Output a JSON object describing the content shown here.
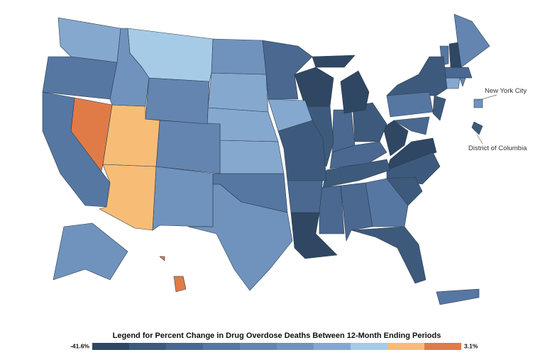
{
  "map": {
    "annotations": [
      "New York City",
      "District of Columbia"
    ],
    "legend": {
      "title": "Legend for Percent Change in Drug Overdose Deaths Between 12-Month Ending Periods",
      "min": {
        "value": -41.6,
        "label": "-41.6%"
      },
      "max": {
        "value": 3.1,
        "label": "3.1%"
      },
      "colors": [
        "#2f4762",
        "#3d5a7c",
        "#4a6890",
        "#5677a2",
        "#6385b0",
        "#7093bd",
        "#85a8cf",
        "#a5cbe7",
        "#f7bd76",
        "#e07b48"
      ]
    },
    "regions": [
      {
        "color": "#85a8cf"
      },
      {
        "color": "#5677a2"
      },
      {
        "color": "#5677a2"
      },
      {
        "color": "#e07b48"
      },
      {
        "color": "#7093bd"
      },
      {
        "color": "#a5cbe7"
      },
      {
        "color": "#6385b0"
      },
      {
        "color": "#f7bd76"
      },
      {
        "color": "#f7bd76"
      },
      {
        "color": "#6385b0"
      },
      {
        "color": "#7093bd"
      },
      {
        "color": "#7093bd"
      },
      {
        "color": "#85a8cf"
      },
      {
        "color": "#85a8cf"
      },
      {
        "color": "#85a8cf"
      },
      {
        "color": "#5677a2"
      },
      {
        "color": "#7093bd"
      },
      {
        "color": "#4a6890"
      },
      {
        "color": "#85a8cf"
      },
      {
        "color": "#3d5a7c"
      },
      {
        "color": "#4a6890"
      },
      {
        "color": "#2f4762"
      },
      {
        "color": "#2f4762"
      },
      {
        "color": "#3d5a7c"
      },
      {
        "color": "#2f4762"
      },
      {
        "color": "#2f4762"
      },
      {
        "color": "#4a6890"
      },
      {
        "color": "#3d5a7c"
      },
      {
        "color": "#4a6890"
      },
      {
        "color": "#3d5a7c"
      },
      {
        "color": "#4a6890"
      },
      {
        "color": "#4a6890"
      },
      {
        "color": "#5677a2"
      },
      {
        "color": "#3d5a7c"
      },
      {
        "color": "#3d5a7c"
      },
      {
        "color": "#3d5a7c"
      },
      {
        "color": "#2f4762"
      },
      {
        "color": "#2f4762"
      },
      {
        "color": "#5677a2"
      },
      {
        "color": "#3d5a7c"
      },
      {
        "color": "#3d5a7c"
      },
      {
        "color": "#4a6890"
      },
      {
        "color": "#5677a2"
      },
      {
        "color": "#2f4762"
      },
      {
        "color": "#6385b0"
      },
      {
        "color": "#4a6890"
      },
      {
        "color": "#85a8cf"
      },
      {
        "color": "#6385b0"
      },
      {
        "color": "#7093bd"
      },
      {
        "color": "#e07b48"
      },
      {
        "color": "#e07b48"
      },
      {
        "color": "#5677a2"
      },
      {
        "color": "#7093bd"
      },
      {
        "color": "#3d5a7c"
      }
    ]
  }
}
